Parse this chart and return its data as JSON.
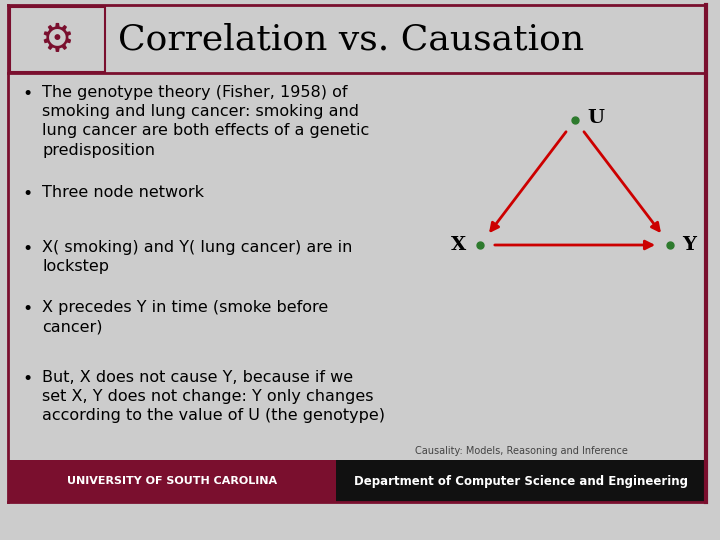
{
  "title": "Correlation vs. Causation",
  "title_fontsize": 26,
  "title_color": "#000000",
  "slide_bg": "#cccccc",
  "border_color": "#7a0f2e",
  "bullet_points": [
    "The genotype theory (Fisher, 1958) of\nsmoking and lung cancer: smoking and\nlung cancer are both effects of a genetic\npredisposition",
    "Three node network",
    "X( smoking) and Y( lung cancer) are in\nlockstep",
    "X precedes Y in time (smoke before\ncancer)",
    "But, X does not cause Y, because if we\nset X, Y does not change: Y only changes\naccording to the value of U (the genotype)"
  ],
  "bullet_fontsize": 11.5,
  "bullet_color": "#000000",
  "graph_color": "#cc0000",
  "node_label_color": "#000000",
  "node_dot_color": "#2d7a2d",
  "footer_left_bg": "#7a0f2e",
  "footer_left_text": "UNIVERSITY OF SOUTH CAROLINA",
  "footer_left_text_color": "#ffffff",
  "footer_right_bg": "#111111",
  "footer_right_text": "Department of Computer Science and Engineering",
  "footer_caption": "Causality: Models, Reasoning and Inference",
  "footer_right_text_color": "#ffffff",
  "footer_caption_color": "#444444"
}
